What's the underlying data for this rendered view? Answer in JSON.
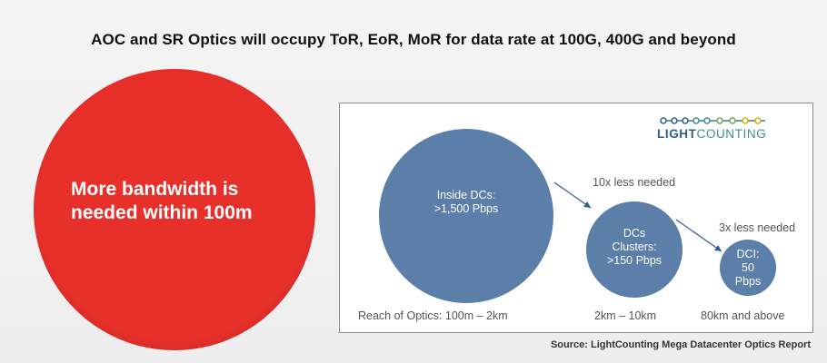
{
  "title": "AOC and SR Optics will occupy ToR, EoR, MoR for data rate at 100G, 400G and beyond",
  "left_circle": {
    "line1": "More bandwidth is",
    "line2": "needed within 100m",
    "color": "#e8302a"
  },
  "logo": {
    "part1": "LIGHT",
    "part2": "COUNTING"
  },
  "bubbles": [
    {
      "line1": "Inside DCs:",
      "line2": ">1,500 Pbps",
      "line3": ""
    },
    {
      "line1": "DCs",
      "line2": "Clusters:",
      "line3": ">150 Pbps"
    },
    {
      "line1": "DCI:",
      "line2": "50",
      "line3": "Pbps"
    }
  ],
  "notes": {
    "first": "10x less needed",
    "second": "3x less needed"
  },
  "reach": {
    "first": "Reach of Optics: 100m – 2km",
    "second": "2km – 10km",
    "third": "80km  and above"
  },
  "bubble_color": "#5b7fa8",
  "source": "Source: LightCounting Mega Datacenter Optics Report"
}
